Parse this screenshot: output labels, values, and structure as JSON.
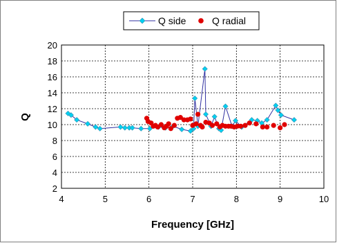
{
  "chart_data": {
    "type": "scatter",
    "title": "",
    "xlabel": "Frequency [GHz]",
    "ylabel": "Q",
    "xlim": [
      4,
      10
    ],
    "ylim": [
      2,
      20
    ],
    "xticks": [
      4,
      5,
      6,
      7,
      8,
      9,
      10
    ],
    "yticks": [
      2,
      4,
      6,
      8,
      10,
      12,
      14,
      16,
      18,
      20
    ],
    "grid": true,
    "grid_style": "dashed",
    "legend_position": "top",
    "series": [
      {
        "name": "Q side",
        "mode": "lines+markers",
        "marker": "diamond",
        "color": "#00D0F0",
        "line_color": "#3030A0",
        "x": [
          4.15,
          4.22,
          4.35,
          4.6,
          4.78,
          4.88,
          5.35,
          5.45,
          5.55,
          5.62,
          5.82,
          6.02,
          6.22,
          6.38,
          6.55,
          6.75,
          6.95,
          7.02,
          7.05,
          7.12,
          7.28,
          7.3,
          7.42,
          7.5,
          7.6,
          7.65,
          7.75,
          7.9,
          7.98,
          8.12,
          8.35,
          8.48,
          8.58,
          8.7,
          8.9,
          8.95,
          9.02,
          9.32
        ],
        "y": [
          11.4,
          11.2,
          10.6,
          10.1,
          9.7,
          9.5,
          9.7,
          9.6,
          9.6,
          9.6,
          9.5,
          9.5,
          9.7,
          9.6,
          9.8,
          9.4,
          9.2,
          9.5,
          13.3,
          9.8,
          17.0,
          11.3,
          9.8,
          11.0,
          9.5,
          9.3,
          12.3,
          9.8,
          10.5,
          9.7,
          10.6,
          10.5,
          10.2,
          10.6,
          12.4,
          11.8,
          11.2,
          10.6
        ]
      },
      {
        "name": "Q radial",
        "mode": "markers",
        "marker": "circle",
        "color": "#E00000",
        "x": [
          5.95,
          5.98,
          6.05,
          6.1,
          6.15,
          6.2,
          6.28,
          6.35,
          6.4,
          6.45,
          6.5,
          6.58,
          6.65,
          6.72,
          6.8,
          6.88,
          6.95,
          7.0,
          7.08,
          7.12,
          7.18,
          7.22,
          7.3,
          7.38,
          7.45,
          7.55,
          7.62,
          7.68,
          7.75,
          7.82,
          7.88,
          7.95,
          8.02,
          8.1,
          8.2,
          8.3,
          8.45,
          8.6,
          8.7,
          8.85,
          9.0,
          9.1
        ],
        "y": [
          10.8,
          10.4,
          10.2,
          9.8,
          9.9,
          9.7,
          10.0,
          9.6,
          9.8,
          10.1,
          9.5,
          9.9,
          10.8,
          10.9,
          10.6,
          10.6,
          10.7,
          9.9,
          10.1,
          11.3,
          9.9,
          9.7,
          10.3,
          10.2,
          9.9,
          10.1,
          9.7,
          9.9,
          9.8,
          9.8,
          9.8,
          9.7,
          9.8,
          9.8,
          9.9,
          10.2,
          10.1,
          9.7,
          9.7,
          9.9,
          9.6,
          10.0
        ]
      }
    ]
  }
}
